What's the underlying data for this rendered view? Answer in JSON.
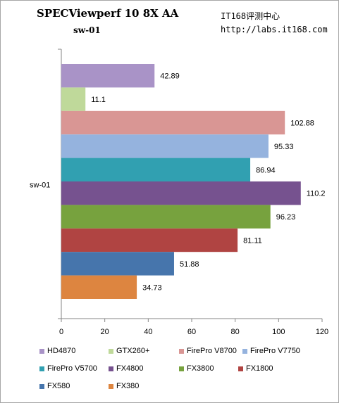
{
  "header": {
    "title": "SPECViewperf 10  8X AA",
    "subtitle": "sw-01",
    "site_name": "IT168评测中心",
    "site_url": "http://labs.it168.com"
  },
  "chart_data": {
    "type": "bar",
    "orientation": "horizontal",
    "categories": [
      "sw-01"
    ],
    "xlim": [
      0,
      120
    ],
    "x_ticks": [
      0,
      20,
      40,
      60,
      80,
      100,
      120
    ],
    "grid": false,
    "legend_position": "bottom",
    "series": [
      {
        "name": "HD4870",
        "values": [
          42.89
        ],
        "label": "42.89",
        "color": "#a993c7"
      },
      {
        "name": "GTX260+",
        "values": [
          11.1
        ],
        "label": "11.1",
        "color": "#bfd99a"
      },
      {
        "name": "FirePro V8700",
        "values": [
          102.88
        ],
        "label": "102.88",
        "color": "#d99694"
      },
      {
        "name": "FirePro V7750",
        "values": [
          95.33
        ],
        "label": "95.33",
        "color": "#95b3de"
      },
      {
        "name": "FirePro V5700",
        "values": [
          86.94
        ],
        "label": "86.94",
        "color": "#31a0b1"
      },
      {
        "name": "FX4800",
        "values": [
          110.2
        ],
        "label": "110.2",
        "color": "#76528f"
      },
      {
        "name": "FX3800",
        "values": [
          96.23
        ],
        "label": "96.23",
        "color": "#77a23e"
      },
      {
        "name": "FX1800",
        "values": [
          81.11
        ],
        "label": "81.11",
        "color": "#b04442"
      },
      {
        "name": "FX580",
        "values": [
          51.88
        ],
        "label": "51.88",
        "color": "#4675ac"
      },
      {
        "name": "FX380",
        "values": [
          34.73
        ],
        "label": "34.73",
        "color": "#dd8540"
      }
    ]
  }
}
